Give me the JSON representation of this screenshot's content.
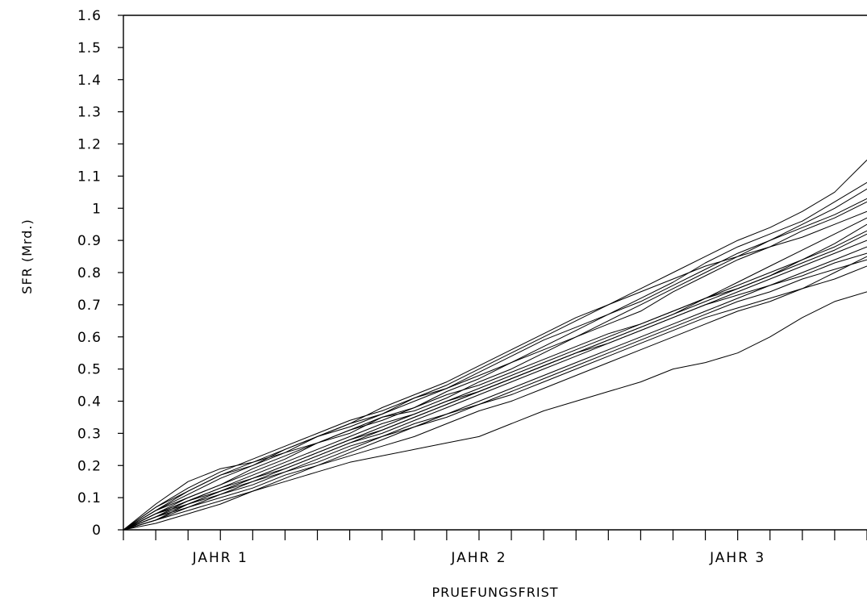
{
  "chart_data": {
    "type": "line",
    "title": "",
    "xlabel": "PRUEFUNGSFRIST",
    "ylabel": "SFR (Mrd.)",
    "ylim": [
      0,
      1.6
    ],
    "yticks": [
      "0",
      "0.1",
      "0.2",
      "0.3",
      "0.4",
      "0.5",
      "0.6",
      "0.7",
      "0.8",
      "0.9",
      "1",
      "1.1",
      "1.2",
      "1.3",
      "1.4",
      "1.5",
      "1.6"
    ],
    "x_unit": "months",
    "xlim": [
      0,
      34.5
    ],
    "x_category_labels": [
      {
        "label": "JAHR 1",
        "at": 4.5
      },
      {
        "label": "JAHR 2",
        "at": 16.5
      },
      {
        "label": "JAHR 3",
        "at": 28.5
      }
    ],
    "grid": false,
    "x": [
      0,
      1.5,
      3,
      4.5,
      6,
      7.5,
      9,
      10.5,
      12,
      13.5,
      15,
      16.5,
      18,
      19.5,
      21,
      22.5,
      24,
      25.5,
      27,
      28.5,
      30,
      31.5,
      33,
      34.5
    ],
    "series": [
      {
        "values": [
          0,
          0.08,
          0.15,
          0.19,
          0.21,
          0.24,
          0.27,
          0.31,
          0.35,
          0.38,
          0.43,
          0.47,
          0.52,
          0.57,
          0.62,
          0.67,
          0.72,
          0.77,
          0.83,
          0.88,
          0.92,
          0.96,
          1.02,
          1.08
        ]
      },
      {
        "values": [
          0,
          0.07,
          0.12,
          0.17,
          0.2,
          0.25,
          0.29,
          0.33,
          0.36,
          0.41,
          0.45,
          0.5,
          0.55,
          0.6,
          0.65,
          0.7,
          0.75,
          0.8,
          0.85,
          0.9,
          0.94,
          0.99,
          1.05,
          1.15
        ]
      },
      {
        "values": [
          0,
          0.06,
          0.1,
          0.14,
          0.18,
          0.22,
          0.27,
          0.3,
          0.35,
          0.37,
          0.41,
          0.46,
          0.5,
          0.55,
          0.6,
          0.64,
          0.68,
          0.74,
          0.79,
          0.84,
          0.88,
          0.93,
          0.97,
          1.02
        ]
      },
      {
        "values": [
          0,
          0.05,
          0.09,
          0.12,
          0.16,
          0.2,
          0.24,
          0.28,
          0.31,
          0.35,
          0.39,
          0.43,
          0.47,
          0.51,
          0.55,
          0.59,
          0.63,
          0.67,
          0.72,
          0.77,
          0.82,
          0.87,
          0.92,
          0.97
        ]
      },
      {
        "values": [
          0,
          0.05,
          0.08,
          0.11,
          0.15,
          0.18,
          0.22,
          0.26,
          0.29,
          0.33,
          0.36,
          0.4,
          0.44,
          0.48,
          0.52,
          0.56,
          0.6,
          0.64,
          0.68,
          0.72,
          0.76,
          0.8,
          0.84,
          0.88
        ]
      },
      {
        "values": [
          0,
          0.04,
          0.07,
          0.1,
          0.13,
          0.17,
          0.2,
          0.23,
          0.26,
          0.29,
          0.33,
          0.37,
          0.4,
          0.44,
          0.48,
          0.52,
          0.56,
          0.6,
          0.64,
          0.68,
          0.71,
          0.75,
          0.8,
          0.85
        ]
      },
      {
        "values": [
          0,
          0.03,
          0.06,
          0.09,
          0.12,
          0.15,
          0.18,
          0.21,
          0.23,
          0.25,
          0.27,
          0.29,
          0.33,
          0.37,
          0.4,
          0.43,
          0.46,
          0.5,
          0.52,
          0.55,
          0.6,
          0.66,
          0.71,
          0.74
        ]
      },
      {
        "values": [
          0,
          0.04,
          0.08,
          0.12,
          0.15,
          0.19,
          0.23,
          0.27,
          0.3,
          0.34,
          0.38,
          0.42,
          0.46,
          0.5,
          0.54,
          0.58,
          0.62,
          0.66,
          0.7,
          0.73,
          0.76,
          0.79,
          0.83,
          0.86
        ]
      },
      {
        "values": [
          0,
          0.06,
          0.11,
          0.16,
          0.2,
          0.24,
          0.29,
          0.33,
          0.38,
          0.42,
          0.46,
          0.51,
          0.56,
          0.61,
          0.66,
          0.7,
          0.74,
          0.78,
          0.82,
          0.85,
          0.88,
          0.91,
          0.95,
          0.99
        ]
      },
      {
        "values": [
          0,
          0.05,
          0.1,
          0.14,
          0.19,
          0.23,
          0.27,
          0.31,
          0.34,
          0.38,
          0.42,
          0.45,
          0.49,
          0.53,
          0.57,
          0.61,
          0.64,
          0.68,
          0.72,
          0.75,
          0.79,
          0.83,
          0.87,
          0.92
        ]
      },
      {
        "values": [
          0,
          0.03,
          0.07,
          0.11,
          0.14,
          0.18,
          0.21,
          0.25,
          0.29,
          0.32,
          0.36,
          0.39,
          0.43,
          0.47,
          0.51,
          0.55,
          0.59,
          0.63,
          0.67,
          0.71,
          0.74,
          0.78,
          0.81,
          0.84
        ]
      },
      {
        "values": [
          0,
          0.07,
          0.13,
          0.18,
          0.22,
          0.26,
          0.3,
          0.34,
          0.37,
          0.41,
          0.44,
          0.48,
          0.52,
          0.56,
          0.6,
          0.65,
          0.7,
          0.75,
          0.8,
          0.85,
          0.9,
          0.94,
          0.98,
          1.03
        ]
      },
      {
        "values": [
          0,
          0.04,
          0.09,
          0.13,
          0.17,
          0.21,
          0.25,
          0.29,
          0.33,
          0.36,
          0.4,
          0.44,
          0.48,
          0.52,
          0.56,
          0.6,
          0.64,
          0.68,
          0.72,
          0.76,
          0.8,
          0.84,
          0.88,
          0.93
        ]
      },
      {
        "values": [
          0,
          0.02,
          0.05,
          0.08,
          0.12,
          0.16,
          0.2,
          0.24,
          0.28,
          0.32,
          0.35,
          0.39,
          0.42,
          0.46,
          0.5,
          0.54,
          0.58,
          0.62,
          0.66,
          0.69,
          0.72,
          0.75,
          0.78,
          0.82
        ]
      },
      {
        "values": [
          0,
          0.06,
          0.12,
          0.17,
          0.21,
          0.25,
          0.29,
          0.32,
          0.36,
          0.4,
          0.44,
          0.49,
          0.54,
          0.59,
          0.63,
          0.67,
          0.71,
          0.76,
          0.81,
          0.86,
          0.9,
          0.95,
          1.0,
          1.06
        ]
      },
      {
        "values": [
          0,
          0.05,
          0.09,
          0.13,
          0.16,
          0.2,
          0.24,
          0.28,
          0.32,
          0.36,
          0.4,
          0.43,
          0.47,
          0.51,
          0.55,
          0.59,
          0.63,
          0.67,
          0.71,
          0.75,
          0.79,
          0.84,
          0.89,
          0.95
        ]
      },
      {
        "values": [
          0,
          0.03,
          0.08,
          0.12,
          0.16,
          0.19,
          0.23,
          0.27,
          0.31,
          0.35,
          0.39,
          0.43,
          0.47,
          0.51,
          0.55,
          0.58,
          0.62,
          0.66,
          0.7,
          0.74,
          0.78,
          0.82,
          0.86,
          0.9
        ]
      }
    ]
  }
}
